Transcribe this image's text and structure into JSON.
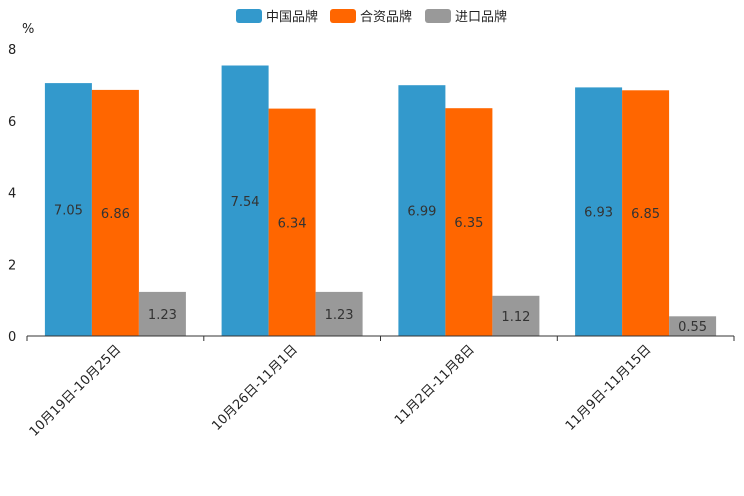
{
  "chart_data": {
    "type": "bar",
    "title": "",
    "xlabel": "",
    "ylabel": "%",
    "ylim": [
      0,
      8
    ],
    "yticks": [
      0,
      2,
      4,
      6,
      8
    ],
    "grid": false,
    "legend_position": "top-center",
    "categories": [
      "10月19日-10月25日",
      "10月26日-11月1日",
      "11月2日-11月8日",
      "11月9日-11月15日"
    ],
    "series": [
      {
        "name": "中国品牌",
        "color": "#3399CC",
        "values": [
          7.05,
          7.54,
          6.99,
          6.93
        ],
        "labels": [
          "7.05",
          "7.54",
          "6.99",
          "6.93"
        ]
      },
      {
        "name": "合资品牌",
        "color": "#FF6600",
        "values": [
          6.86,
          6.34,
          6.35,
          6.85
        ],
        "labels": [
          "6.86",
          "6.34",
          "6.35",
          "6.85"
        ]
      },
      {
        "name": "进口品牌",
        "color": "#999999",
        "values": [
          1.23,
          1.23,
          1.12,
          0.55
        ],
        "labels": [
          "1.23",
          "1.23",
          "1.12",
          "0.55"
        ]
      }
    ]
  }
}
